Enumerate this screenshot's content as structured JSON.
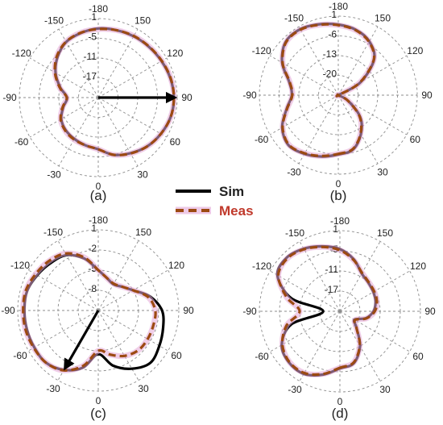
{
  "colors": {
    "sim": "#000000",
    "meas": "#9c4a12",
    "meas_glow": "#e3a6d6",
    "grid": "#8c8c8c",
    "meas_label": "#c0392b"
  },
  "legend": {
    "sim": "Sim",
    "meas": "Meas"
  },
  "chart_data": [
    {
      "type": "polar-line",
      "caption": "(a)",
      "angle_labels": [
        "-180",
        "-150",
        "-120",
        "-90",
        "-60",
        "-30",
        "0",
        "30",
        "60",
        "90",
        "120",
        "150"
      ],
      "radial_labels": [
        "1",
        "-5",
        "-11",
        "-17"
      ],
      "r_range": [
        -23,
        1
      ],
      "angle_orientation": "0 at bottom, counterclockwise positive",
      "grid": true,
      "series": [
        {
          "name": "Sim",
          "angles": [
            0,
            15,
            30,
            45,
            60,
            75,
            90,
            105,
            120,
            135,
            150,
            165,
            180,
            -165,
            -150,
            -135,
            -120,
            -105,
            -90,
            -75,
            -60,
            -45,
            -30,
            -15
          ],
          "values": [
            -7.3,
            -5.0,
            -3.5,
            -2.0,
            -1.0,
            -0.2,
            0.0,
            -0.3,
            -0.8,
            -1.2,
            -1.5,
            -1.8,
            -2.0,
            -2.7,
            -3.5,
            -5.5,
            -8.0,
            -11.0,
            -13.5,
            -12.0,
            -10.0,
            -9.0,
            -8.5,
            -8.0
          ]
        },
        {
          "name": "Meas",
          "angles": [
            0,
            15,
            30,
            45,
            60,
            75,
            90,
            105,
            120,
            135,
            150,
            165,
            180,
            -165,
            -150,
            -135,
            -120,
            -105,
            -90,
            -75,
            -60,
            -45,
            -30,
            -15
          ],
          "values": [
            -7.3,
            -5.0,
            -3.4,
            -2.0,
            -1.0,
            -0.2,
            0.0,
            -0.2,
            -0.7,
            -1.1,
            -1.4,
            -1.8,
            -2.2,
            -2.6,
            -3.4,
            -5.2,
            -7.8,
            -10.8,
            -13.4,
            -11.8,
            -9.8,
            -8.8,
            -8.3,
            -8.0
          ]
        }
      ],
      "arrow": {
        "angle": 90,
        "value": 0
      }
    },
    {
      "type": "polar-line",
      "caption": "(b)",
      "angle_labels": [
        "-180",
        "-150",
        "-120",
        "-90",
        "-60",
        "-30",
        "0",
        "30",
        "60",
        "90",
        "120",
        "150"
      ],
      "radial_labels": [
        "1",
        "-6",
        "-13",
        "-20"
      ],
      "r_range": [
        -27,
        1
      ],
      "angle_orientation": "0 at bottom, counterclockwise positive",
      "grid": true,
      "series": [
        {
          "name": "Sim",
          "angles": [
            0,
            15,
            30,
            45,
            60,
            75,
            90,
            105,
            120,
            135,
            150,
            165,
            180,
            -165,
            -150,
            -135,
            -120,
            -105,
            -90,
            -75,
            -60,
            -45,
            -30,
            -15
          ],
          "values": [
            -6.0,
            -7.0,
            -11.0,
            -16.0,
            -23.0,
            -27.0,
            -27.0,
            -27.0,
            -18.0,
            -9.0,
            -5.0,
            -3.0,
            -2.0,
            -1.0,
            0.0,
            -0.5,
            -4.0,
            -9.0,
            -10.5,
            -8.0,
            -4.0,
            -2.0,
            -3.0,
            -4.5
          ]
        },
        {
          "name": "Meas",
          "angles": [
            0,
            15,
            30,
            45,
            60,
            75,
            90,
            105,
            120,
            135,
            150,
            165,
            180,
            -165,
            -150,
            -135,
            -120,
            -105,
            -90,
            -75,
            -60,
            -45,
            -30,
            -15
          ],
          "values": [
            -6.2,
            -7.2,
            -11.2,
            -16.3,
            -23.0,
            -27.0,
            -27.0,
            -27.0,
            -18.3,
            -9.2,
            -5.2,
            -3.2,
            -2.2,
            -1.2,
            -0.2,
            -0.7,
            -4.2,
            -9.2,
            -10.7,
            -8.2,
            -4.2,
            -2.2,
            -3.2,
            -4.7
          ]
        }
      ]
    },
    {
      "type": "polar-line",
      "caption": "(c)",
      "angle_labels": [
        "-180",
        "-150",
        "-120",
        "-90",
        "-60",
        "-30",
        "0",
        "30",
        "60",
        "90",
        "120",
        "150"
      ],
      "radial_labels": [
        "1",
        "-2",
        "-5",
        "-8"
      ],
      "r_range": [
        -11,
        1
      ],
      "angle_orientation": "0 at bottom, counterclockwise positive",
      "grid": true,
      "series": [
        {
          "name": "Sim",
          "angles": [
            0,
            15,
            30,
            45,
            60,
            75,
            90,
            105,
            120,
            135,
            150,
            165,
            180,
            -165,
            -150,
            -135,
            -120,
            -105,
            -90,
            -75,
            -60,
            -45,
            -30,
            -15
          ],
          "values": [
            -4.5,
            -2.5,
            -1.0,
            0.0,
            -0.5,
            -1.0,
            -1.5,
            -3.0,
            -5.0,
            -6.0,
            -6.5,
            -6.0,
            -5.0,
            -3.0,
            -1.5,
            -1.0,
            -0.5,
            0.0,
            0.0,
            0.0,
            0.0,
            0.0,
            -0.8,
            -2.2
          ]
        },
        {
          "name": "Meas",
          "angles": [
            0,
            15,
            30,
            45,
            60,
            75,
            90,
            105,
            120,
            135,
            150,
            165,
            180,
            -165,
            -150,
            -135,
            -120,
            -105,
            -90,
            -75,
            -60,
            -45,
            -30,
            -15
          ],
          "values": [
            -5.0,
            -4.2,
            -3.2,
            -2.6,
            -2.5,
            -2.5,
            -2.5,
            -3.3,
            -5.0,
            -6.0,
            -6.4,
            -6.0,
            -5.0,
            -2.8,
            -1.2,
            -0.6,
            -0.2,
            0.2,
            0.2,
            0.2,
            0.1,
            0.0,
            -0.7,
            -2.5
          ]
        }
      ],
      "arrow": {
        "angle": -30,
        "value": -1.2
      }
    },
    {
      "type": "polar-line",
      "caption": "(d)",
      "angle_labels": [
        "-180",
        "-150",
        "-120",
        "-90",
        "-60",
        "-30",
        "0",
        "30",
        "60",
        "90",
        "120",
        "150"
      ],
      "radial_labels": [
        "1",
        "-5",
        "-11",
        "-17"
      ],
      "r_range": [
        -23,
        1
      ],
      "angle_orientation": "0 at bottom, counterclockwise positive",
      "grid": true,
      "series": [
        {
          "name": "Sim",
          "angles": [
            0,
            15,
            30,
            45,
            60,
            75,
            90,
            105,
            120,
            135,
            150,
            165,
            180,
            -165,
            -150,
            -135,
            -120,
            -105,
            -90,
            -75,
            -60,
            -45,
            -30,
            -15
          ],
          "values": [
            -6.0,
            -7.0,
            -11.0,
            -16.0,
            -18.0,
            -15.0,
            -13.0,
            -12.0,
            -11.5,
            -11.0,
            -10.0,
            -7.0,
            -4.5,
            -3.0,
            -1.5,
            -0.5,
            -1.5,
            -8.0,
            -18.0,
            -8.0,
            -3.0,
            -1.5,
            -1.5,
            -3.5
          ]
        },
        {
          "name": "Meas",
          "angles": [
            0,
            15,
            30,
            45,
            60,
            75,
            90,
            105,
            120,
            135,
            150,
            165,
            180,
            -165,
            -150,
            -135,
            -120,
            -105,
            -90,
            -75,
            -60,
            -45,
            -30,
            -15
          ],
          "values": [
            -6.2,
            -7.2,
            -11.2,
            -16.0,
            -17.8,
            -14.8,
            -12.6,
            -11.6,
            -11.2,
            -10.8,
            -9.8,
            -7.2,
            -4.8,
            -3.2,
            -1.7,
            -0.8,
            -1.8,
            -6.5,
            -11.0,
            -6.5,
            -3.2,
            -1.7,
            -1.8,
            -3.7
          ]
        }
      ]
    }
  ]
}
